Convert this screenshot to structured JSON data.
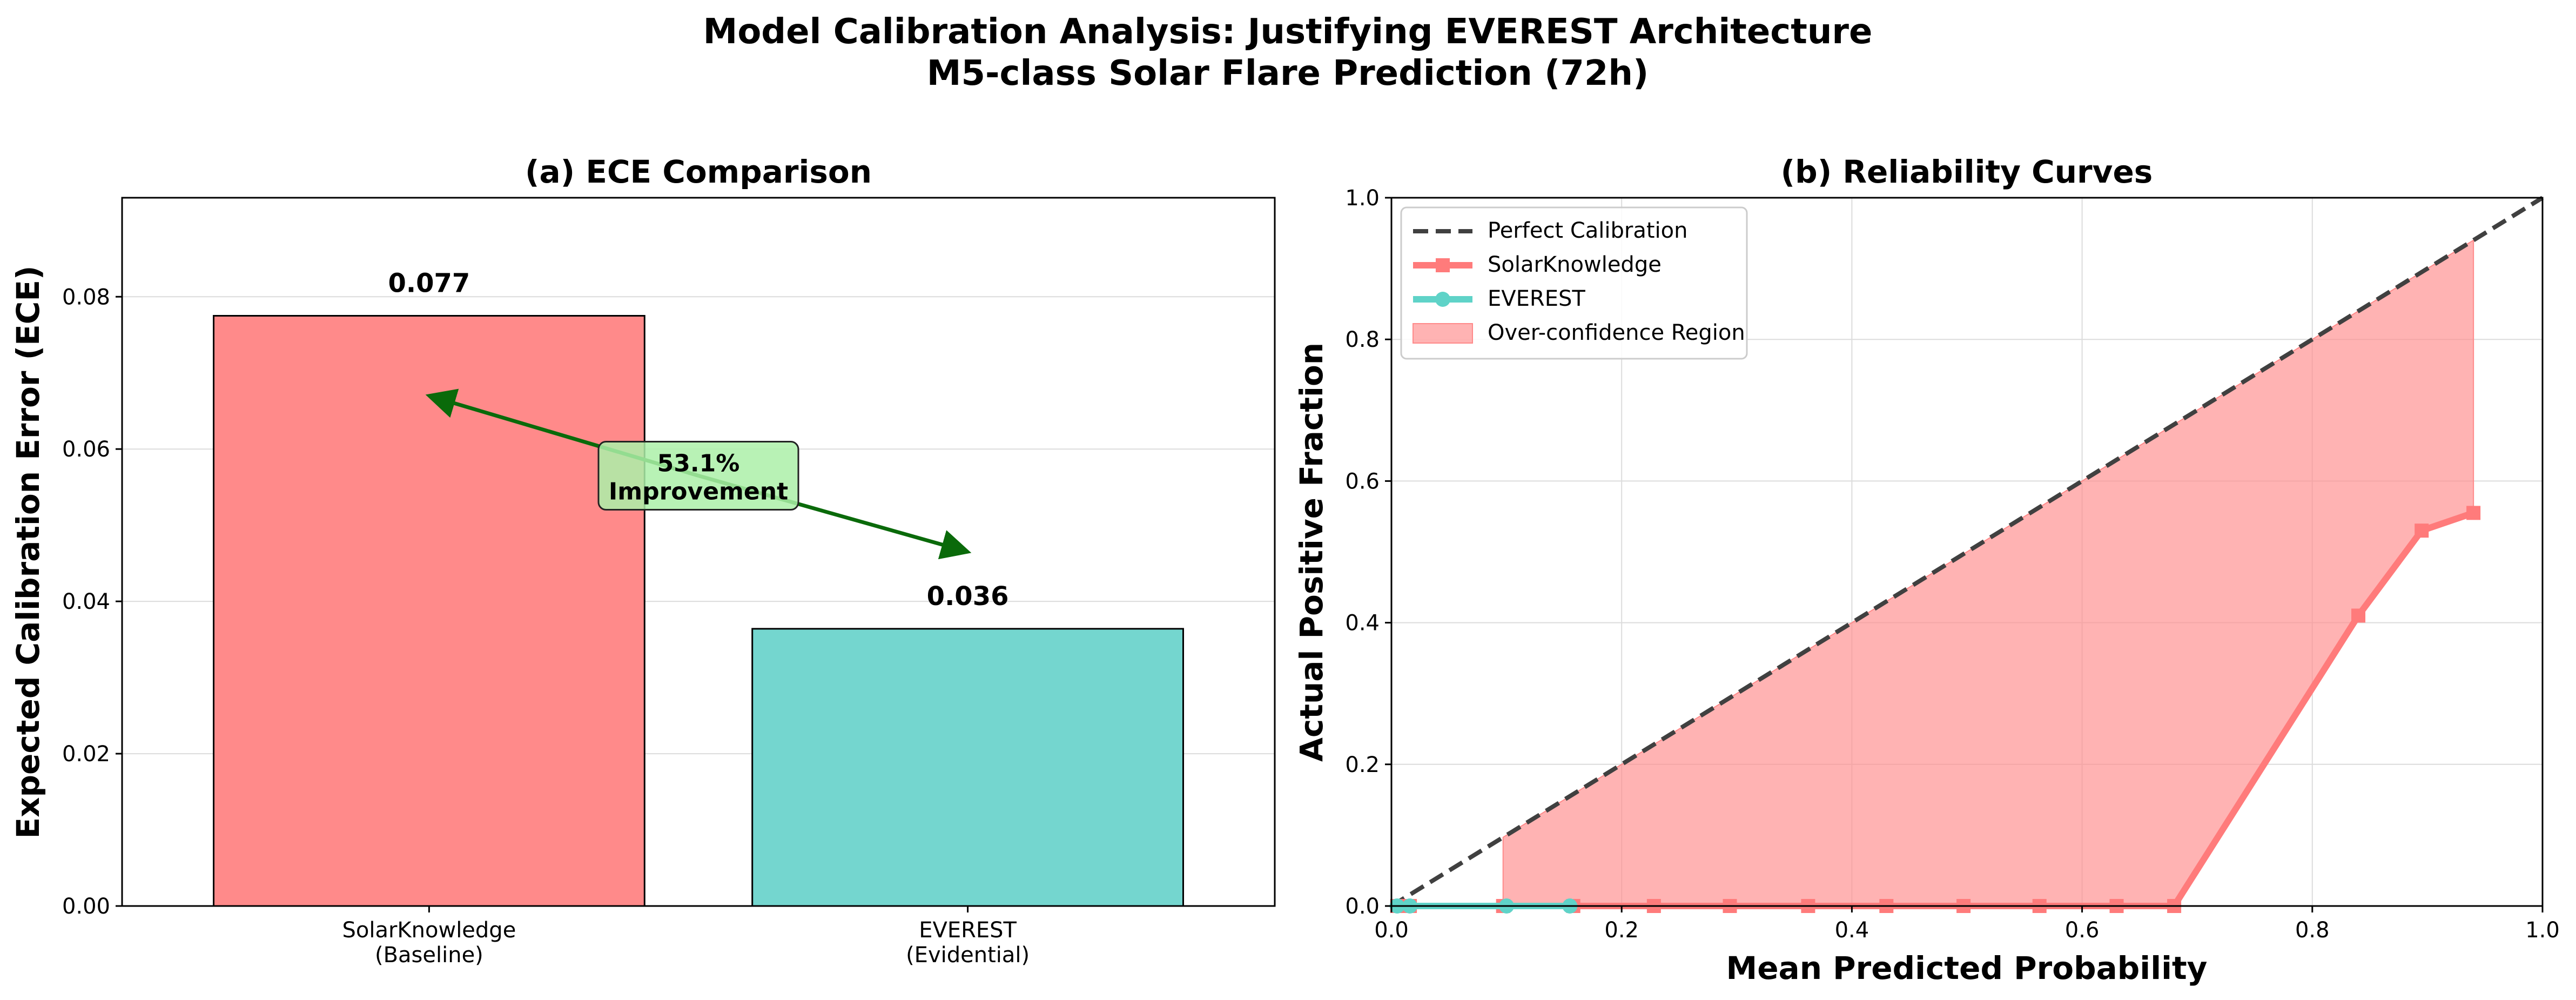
{
  "figure": {
    "title_line1": "Model Calibration Analysis: Justifying EVEREST Architecture",
    "title_line2": "M5-class Solar Flare Prediction (72h)"
  },
  "chart_data": [
    {
      "type": "bar",
      "title": "(a) ECE Comparison",
      "xlabel": "",
      "ylabel": "Expected Calibration Error (ECE)",
      "categories": [
        [
          "SolarKnowledge",
          "(Baseline)"
        ],
        [
          "EVEREST",
          "(Evidential)"
        ]
      ],
      "values": [
        0.0775,
        0.0364
      ],
      "value_labels": [
        "0.077",
        "0.036"
      ],
      "colors": [
        "#ff8a8a",
        "#74d6cf"
      ],
      "ylim": [
        0,
        0.093
      ],
      "yticks": [
        0,
        0.02,
        0.04,
        0.06,
        0.08
      ],
      "ytick_labels": [
        "0.00",
        "0.02",
        "0.04",
        "0.06",
        "0.08"
      ],
      "grid": true,
      "annotation": {
        "line1": "53.1%",
        "line2": "Improvement",
        "arrow_start": [
          0.5,
          0.0465
        ],
        "arrow_end": [
          0.0,
          0.067
        ],
        "arrow_end2": [
          1.0,
          0.0465
        ],
        "label_at": [
          0.5,
          0.0565
        ],
        "box_color": "#acf0a8",
        "arrow_color": "#0a6a0a"
      }
    },
    {
      "type": "line",
      "title": "(b) Reliability Curves",
      "xlabel": "Mean Predicted Probability",
      "ylabel": "Actual Positive Fraction",
      "xlim": [
        0,
        1
      ],
      "ylim": [
        0,
        1
      ],
      "xticks": [
        0,
        0.2,
        0.4,
        0.6,
        0.8,
        1.0
      ],
      "xtick_labels": [
        "0.0",
        "0.2",
        "0.4",
        "0.6",
        "0.8",
        "1.0"
      ],
      "yticks": [
        0,
        0.2,
        0.4,
        0.6,
        0.8,
        1.0
      ],
      "ytick_labels": [
        "0.0",
        "0.2",
        "0.4",
        "0.6",
        "0.8",
        "1.0"
      ],
      "grid": true,
      "legend_position": "upper-left",
      "legend": [
        "Perfect Calibration",
        "SolarKnowledge",
        "EVEREST",
        "Over-confidence Region"
      ],
      "series": [
        {
          "name": "Perfect Calibration",
          "color": "#404040",
          "style": "dashed",
          "x": [
            0,
            1
          ],
          "y": [
            0,
            1
          ]
        },
        {
          "name": "SolarKnowledge",
          "color": "#ff7b7b",
          "marker": "square",
          "x": [
            0.005,
            0.016,
            0.097,
            0.158,
            0.228,
            0.294,
            0.362,
            0.43,
            0.497,
            0.563,
            0.63,
            0.68,
            0.84,
            0.895,
            0.94
          ],
          "y": [
            0,
            0,
            0,
            0,
            0,
            0,
            0,
            0,
            0,
            0,
            0,
            0,
            0.41,
            0.53,
            0.555
          ]
        },
        {
          "name": "EVEREST",
          "color": "#5fd3c8",
          "marker": "circle",
          "x": [
            0.005,
            0.016,
            0.1,
            0.155
          ],
          "y": [
            0,
            0,
            0,
            0
          ]
        }
      ],
      "fill_region": {
        "name": "Over-confidence Region",
        "color": "#ff8a8a",
        "x_start": 0.097,
        "x_end": 0.94
      }
    }
  ]
}
